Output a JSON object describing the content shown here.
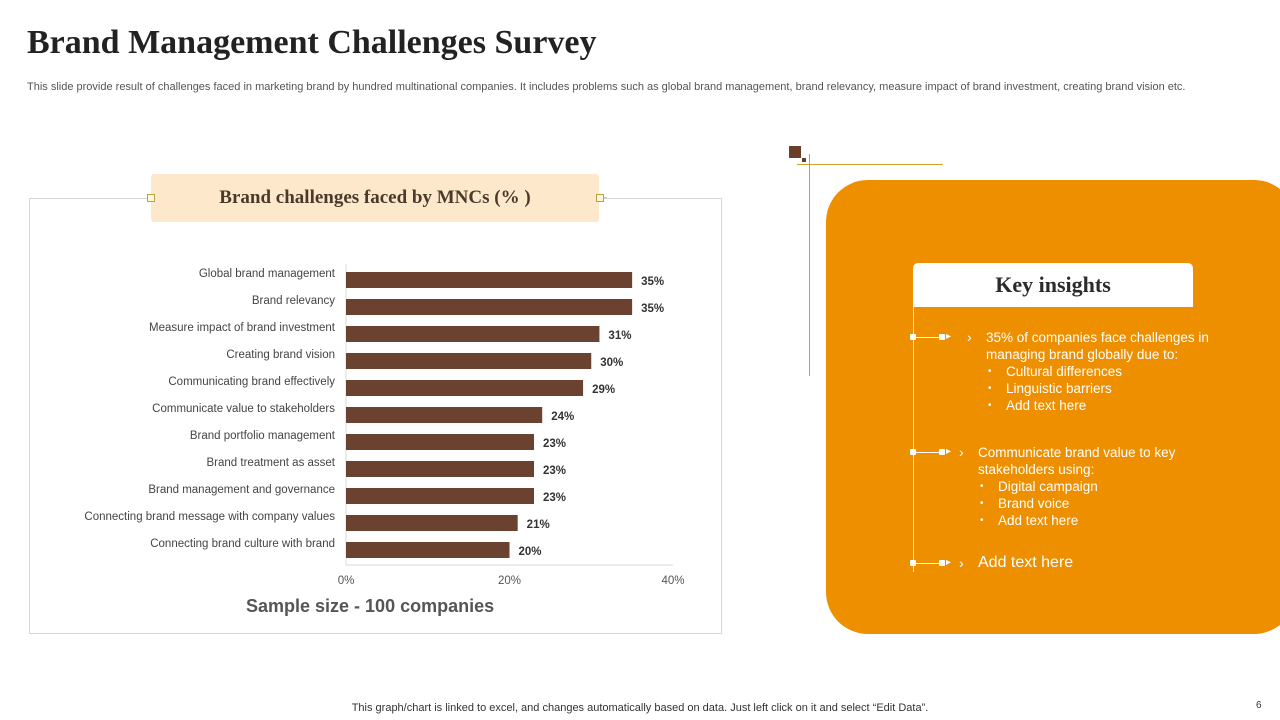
{
  "title": "Brand Management Challenges Survey",
  "subtitle": "This slide provide result of challenges faced in marketing brand by hundred multinational companies. It includes problems such as global brand management, brand relevancy, measure impact of brand investment, creating brand vision etc.",
  "chart_header": "Brand challenges faced by MNCs (% )",
  "sample_size": "Sample size - 100 companies",
  "chart_data": {
    "type": "bar",
    "orientation": "horizontal",
    "title": "Brand challenges faced by MNCs (% )",
    "categories": [
      "Global brand management",
      "Brand relevancy",
      "Measure impact of brand investment",
      "Creating brand vision",
      "Communicating brand effectively",
      "Communicate value to stakeholders",
      "Brand portfolio management",
      "Brand treatment as asset",
      "Brand management and governance",
      "Connecting brand message with company values",
      "Connecting brand culture with brand"
    ],
    "values": [
      35,
      35,
      31,
      30,
      29,
      24,
      23,
      23,
      23,
      21,
      20
    ],
    "value_labels": [
      "35%",
      "35%",
      "31%",
      "30%",
      "29%",
      "24%",
      "23%",
      "23%",
      "23%",
      "21%",
      "20%"
    ],
    "x_ticks": [
      "0%",
      "20%",
      "40%"
    ],
    "xlim": [
      0,
      40
    ],
    "grid": false,
    "bar_color": "#6b4230"
  },
  "insights": {
    "heading": "Key insights",
    "items": [
      {
        "lead": "35% of companies face challenges in managing brand globally due to:",
        "bullets": [
          "Cultural differences",
          "Linguistic barriers",
          "Add text here"
        ]
      },
      {
        "lead": "Communicate brand value to key stakeholders using:",
        "bullets": [
          "Digital campaign",
          "Brand voice",
          "Add text here"
        ]
      },
      {
        "lead": "Add text here",
        "bullets": []
      }
    ]
  },
  "footer": "This graph/chart is linked to excel, and changes automatically based on data. Just left click on it and select “Edit Data”.",
  "page_number": "6",
  "colors": {
    "accent_orange": "#ee8f00",
    "bar_brown": "#6b4230",
    "header_bg": "#fde8cc"
  }
}
